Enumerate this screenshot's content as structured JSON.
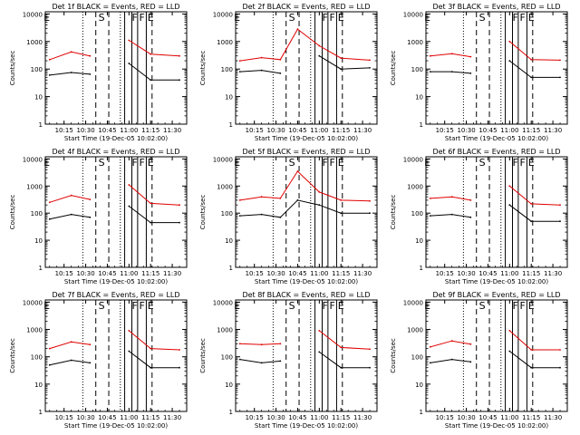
{
  "figure": {
    "colors": {
      "events": "#000000",
      "lld": "#e00000",
      "axes": "#000000",
      "background": "#ffffff"
    },
    "shared": {
      "xlabel": "Start Time (19-Dec-05 10:02:00)",
      "ylabel": "Counts/sec",
      "xticks": [
        "10:15",
        "10:30",
        "10:45",
        "11:00",
        "11:15",
        "11:30"
      ],
      "yticks": [
        "1",
        "10",
        "100",
        "1000",
        "10000"
      ],
      "flags": [
        "E",
        "S",
        "F",
        "F",
        "E"
      ]
    }
  },
  "chart_data": [
    {
      "type": "line",
      "title": "Det 1f BLACK = Events, RED = LLD",
      "xlim": [
        "10:02",
        "11:40"
      ],
      "ylim": [
        1,
        12000
      ],
      "y_scale": "log",
      "grid": false,
      "series": [
        {
          "name": "BLACK = Events",
          "x": [
            "10:05",
            "10:20",
            "10:33",
            "10:45",
            "11:00",
            "11:15",
            "11:35"
          ],
          "values": [
            60,
            75,
            65,
            0,
            160,
            40,
            40
          ]
        },
        {
          "name": "RED = LLD",
          "x": [
            "10:05",
            "10:20",
            "10:33",
            "10:45",
            "11:00",
            "11:15",
            "11:35"
          ],
          "values": [
            220,
            420,
            300,
            0,
            1100,
            350,
            300
          ]
        }
      ]
    },
    {
      "type": "line",
      "title": "Det 2f BLACK = Events, RED = LLD",
      "xlim": [
        "10:02",
        "11:40"
      ],
      "ylim": [
        1,
        12000
      ],
      "y_scale": "log",
      "grid": false,
      "series": [
        {
          "name": "BLACK = Events",
          "x": [
            "10:05",
            "10:20",
            "10:33",
            "10:45",
            "11:00",
            "11:15",
            "11:35"
          ],
          "values": [
            80,
            90,
            70,
            0,
            300,
            100,
            110
          ]
        },
        {
          "name": "RED = LLD",
          "x": [
            "10:05",
            "10:20",
            "10:33",
            "10:45",
            "11:00",
            "11:15",
            "11:35"
          ],
          "values": [
            200,
            260,
            220,
            2800,
            700,
            250,
            210
          ]
        }
      ]
    },
    {
      "type": "line",
      "title": "Det 3f BLACK = Events, RED = LLD",
      "xlim": [
        "10:02",
        "11:40"
      ],
      "ylim": [
        1,
        12000
      ],
      "y_scale": "log",
      "grid": false,
      "series": [
        {
          "name": "BLACK = Events",
          "x": [
            "10:05",
            "10:20",
            "10:33",
            "10:45",
            "11:00",
            "11:15",
            "11:35"
          ],
          "values": [
            80,
            80,
            70,
            0,
            200,
            50,
            50
          ]
        },
        {
          "name": "RED = LLD",
          "x": [
            "10:05",
            "10:20",
            "10:33",
            "10:45",
            "11:00",
            "11:15",
            "11:35"
          ],
          "values": [
            300,
            360,
            280,
            0,
            1000,
            220,
            210
          ]
        }
      ]
    },
    {
      "type": "line",
      "title": "Det 4f BLACK = Events, RED = LLD",
      "xlim": [
        "10:02",
        "11:40"
      ],
      "ylim": [
        1,
        12000
      ],
      "y_scale": "log",
      "grid": false,
      "series": [
        {
          "name": "BLACK = Events",
          "x": [
            "10:05",
            "10:20",
            "10:33",
            "10:45",
            "11:00",
            "11:15",
            "11:35"
          ],
          "values": [
            60,
            90,
            70,
            0,
            180,
            45,
            45
          ]
        },
        {
          "name": "RED = LLD",
          "x": [
            "10:05",
            "10:20",
            "10:33",
            "10:45",
            "11:00",
            "11:15",
            "11:35"
          ],
          "values": [
            250,
            450,
            320,
            0,
            1100,
            230,
            200
          ]
        }
      ]
    },
    {
      "type": "line",
      "title": "Det 5f BLACK = Events, RED = LLD",
      "xlim": [
        "10:02",
        "11:40"
      ],
      "ylim": [
        1,
        12000
      ],
      "y_scale": "log",
      "grid": false,
      "series": [
        {
          "name": "BLACK = Events",
          "x": [
            "10:05",
            "10:20",
            "10:33",
            "10:45",
            "11:00",
            "11:15",
            "11:35"
          ],
          "values": [
            80,
            90,
            70,
            300,
            200,
            100,
            100
          ]
        },
        {
          "name": "RED = LLD",
          "x": [
            "10:05",
            "10:20",
            "10:33",
            "10:45",
            "11:00",
            "11:15",
            "11:35"
          ],
          "values": [
            300,
            400,
            350,
            3500,
            600,
            300,
            280
          ]
        }
      ]
    },
    {
      "type": "line",
      "title": "Det 6f BLACK = Events, RED = LLD",
      "xlim": [
        "10:02",
        "11:40"
      ],
      "ylim": [
        1,
        12000
      ],
      "y_scale": "log",
      "grid": false,
      "series": [
        {
          "name": "BLACK = Events",
          "x": [
            "10:05",
            "10:20",
            "10:33",
            "10:45",
            "11:00",
            "11:15",
            "11:35"
          ],
          "values": [
            80,
            90,
            70,
            0,
            200,
            50,
            50
          ]
        },
        {
          "name": "RED = LLD",
          "x": [
            "10:05",
            "10:20",
            "10:33",
            "10:45",
            "11:00",
            "11:15",
            "11:35"
          ],
          "values": [
            350,
            400,
            300,
            0,
            1000,
            220,
            200
          ]
        }
      ]
    },
    {
      "type": "line",
      "title": "Det 7f BLACK = Events, RED = LLD",
      "xlim": [
        "10:02",
        "11:40"
      ],
      "ylim": [
        1,
        12000
      ],
      "y_scale": "log",
      "grid": false,
      "series": [
        {
          "name": "BLACK = Events",
          "x": [
            "10:05",
            "10:20",
            "10:33",
            "10:45",
            "11:00",
            "11:15",
            "11:35"
          ],
          "values": [
            50,
            75,
            60,
            0,
            160,
            40,
            40
          ]
        },
        {
          "name": "RED = LLD",
          "x": [
            "10:05",
            "10:20",
            "10:33",
            "10:45",
            "11:00",
            "11:15",
            "11:35"
          ],
          "values": [
            200,
            350,
            280,
            0,
            900,
            200,
            180
          ]
        }
      ]
    },
    {
      "type": "line",
      "title": "Det 8f BLACK = Events, RED = LLD",
      "xlim": [
        "10:02",
        "11:40"
      ],
      "ylim": [
        1,
        12000
      ],
      "y_scale": "log",
      "grid": false,
      "series": [
        {
          "name": "BLACK = Events",
          "x": [
            "10:05",
            "10:20",
            "10:33",
            "10:45",
            "11:00",
            "11:15",
            "11:35"
          ],
          "values": [
            80,
            60,
            70,
            0,
            150,
            40,
            40
          ]
        },
        {
          "name": "RED = LLD",
          "x": [
            "10:05",
            "10:20",
            "10:33",
            "10:45",
            "11:00",
            "11:15",
            "11:35"
          ],
          "values": [
            300,
            280,
            300,
            0,
            900,
            220,
            190
          ]
        }
      ]
    },
    {
      "type": "line",
      "title": "Det 9f BLACK = Events, RED = LLD",
      "xlim": [
        "10:02",
        "11:40"
      ],
      "ylim": [
        1,
        12000
      ],
      "y_scale": "log",
      "grid": false,
      "series": [
        {
          "name": "BLACK = Events",
          "x": [
            "10:05",
            "10:20",
            "10:33",
            "10:45",
            "11:00",
            "11:15",
            "11:35"
          ],
          "values": [
            60,
            80,
            65,
            0,
            160,
            40,
            40
          ]
        },
        {
          "name": "RED = LLD",
          "x": [
            "10:05",
            "10:20",
            "10:33",
            "10:45",
            "11:00",
            "11:15",
            "11:35"
          ],
          "values": [
            230,
            380,
            290,
            0,
            900,
            180,
            180
          ]
        }
      ]
    }
  ]
}
